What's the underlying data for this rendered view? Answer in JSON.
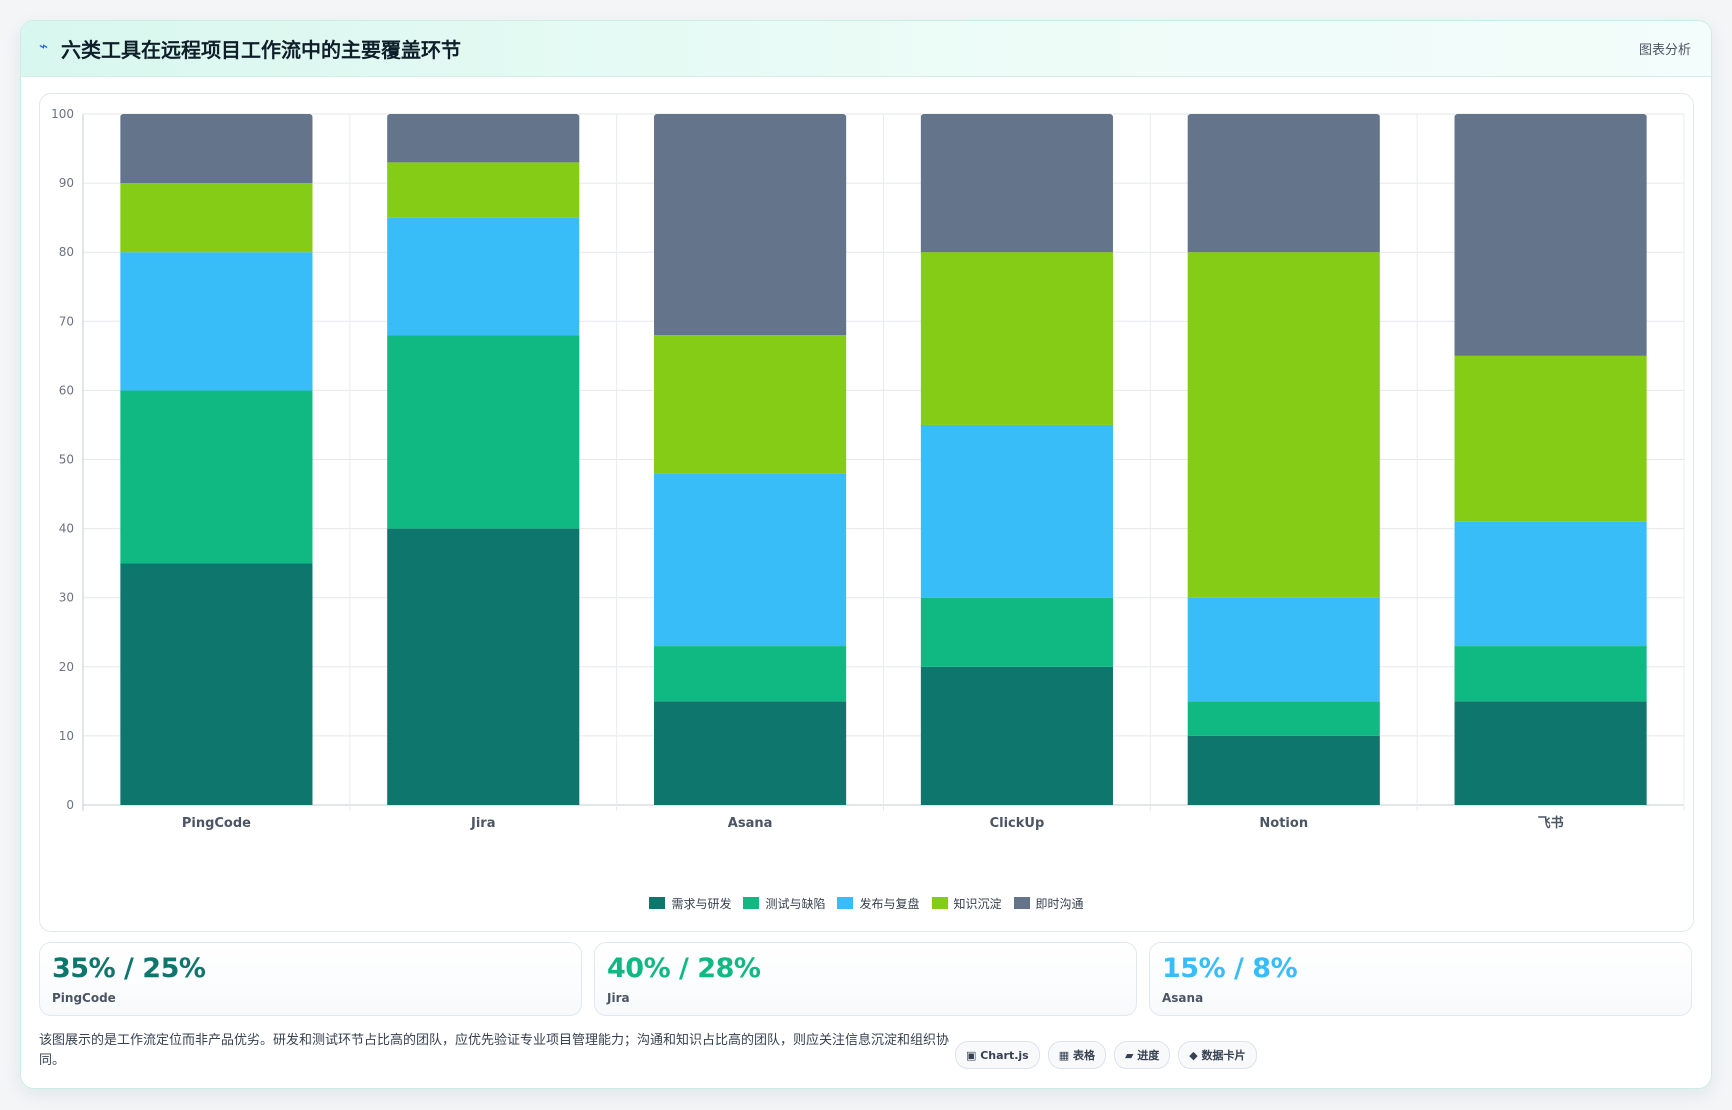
{
  "header": {
    "icon": "bolt-icon",
    "title": "六类工具在远程项目工作流中的主要覆盖环节",
    "right_label": "图表分析"
  },
  "chart_data": {
    "type": "bar",
    "stacked": true,
    "categories": [
      "PingCode",
      "Jira",
      "Asana",
      "ClickUp",
      "Notion",
      "飞书"
    ],
    "series": [
      {
        "name": "需求与研发",
        "color": "#0f766e",
        "values": [
          35,
          40,
          15,
          20,
          10,
          15
        ]
      },
      {
        "name": "测试与缺陷",
        "color": "#10b981",
        "values": [
          25,
          28,
          8,
          10,
          5,
          8
        ]
      },
      {
        "name": "发布与复盘",
        "color": "#38bdf8",
        "values": [
          20,
          17,
          25,
          25,
          15,
          18
        ]
      },
      {
        "name": "知识沉淀",
        "color": "#84cc16",
        "values": [
          10,
          8,
          20,
          25,
          50,
          24
        ]
      },
      {
        "name": "即时沟通",
        "color": "#64748b",
        "values": [
          10,
          7,
          32,
          20,
          20,
          35
        ]
      }
    ],
    "ylim": [
      0,
      100
    ],
    "yticks": [
      0,
      10,
      20,
      30,
      40,
      50,
      60,
      70,
      80,
      90,
      100
    ],
    "grid": true,
    "legend": "bottom-center"
  },
  "stats": [
    {
      "value": "35% / 25%",
      "label": "PingCode",
      "color": "#0f766e"
    },
    {
      "value": "40% / 28%",
      "label": "Jira",
      "color": "#10b981"
    },
    {
      "value": "15% / 8%",
      "label": "Asana",
      "color": "#38bdf8"
    }
  ],
  "note": "该图展示的是工作流定位而非产品优劣。研发和测试环节占比高的团队，应优先验证专业项目管理能力；沟通和知识占比高的团队，则应关注信息沉淀和组织协同。",
  "tags": [
    "▣ Chart.js",
    "▦ 表格",
    "▰ 进度",
    "◆ 数据卡片"
  ]
}
